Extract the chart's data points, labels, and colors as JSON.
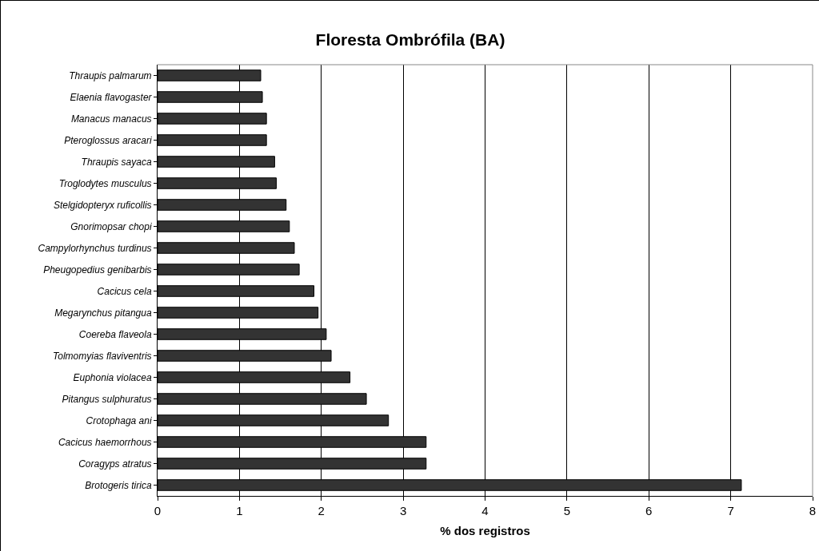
{
  "chart_data": {
    "type": "bar",
    "orientation": "horizontal",
    "title": "Floresta Ombrófila (BA)",
    "xlabel": "% dos registros",
    "categories": [
      "Thraupis palmarum",
      "Elaenia flavogaster",
      "Manacus manacus",
      "Pteroglossus aracari",
      "Thraupis sayaca",
      "Troglodytes musculus",
      "Stelgidopteryx ruficollis",
      "Gnorimopsar chopi",
      "Campylorhynchus turdinus",
      "Pheugopedius genibarbis",
      "Cacicus cela",
      "Megarynchus pitangua",
      "Coereba flaveola",
      "Tolmomyias flaviventris",
      "Euphonia violacea",
      "Pitangus sulphuratus",
      "Crotophaga ani",
      "Cacicus haemorrhous",
      "Coragyps atratus",
      "Brotogeris tirica"
    ],
    "values": [
      1.26,
      1.28,
      1.33,
      1.33,
      1.43,
      1.45,
      1.57,
      1.61,
      1.67,
      1.73,
      1.91,
      1.96,
      2.06,
      2.12,
      2.35,
      2.55,
      2.82,
      3.28,
      3.28,
      7.13
    ],
    "color": "#333333",
    "xlim": [
      0,
      8
    ],
    "xticks": [
      0,
      1,
      2,
      3,
      4,
      5,
      6,
      7,
      8
    ],
    "grid": "x"
  }
}
